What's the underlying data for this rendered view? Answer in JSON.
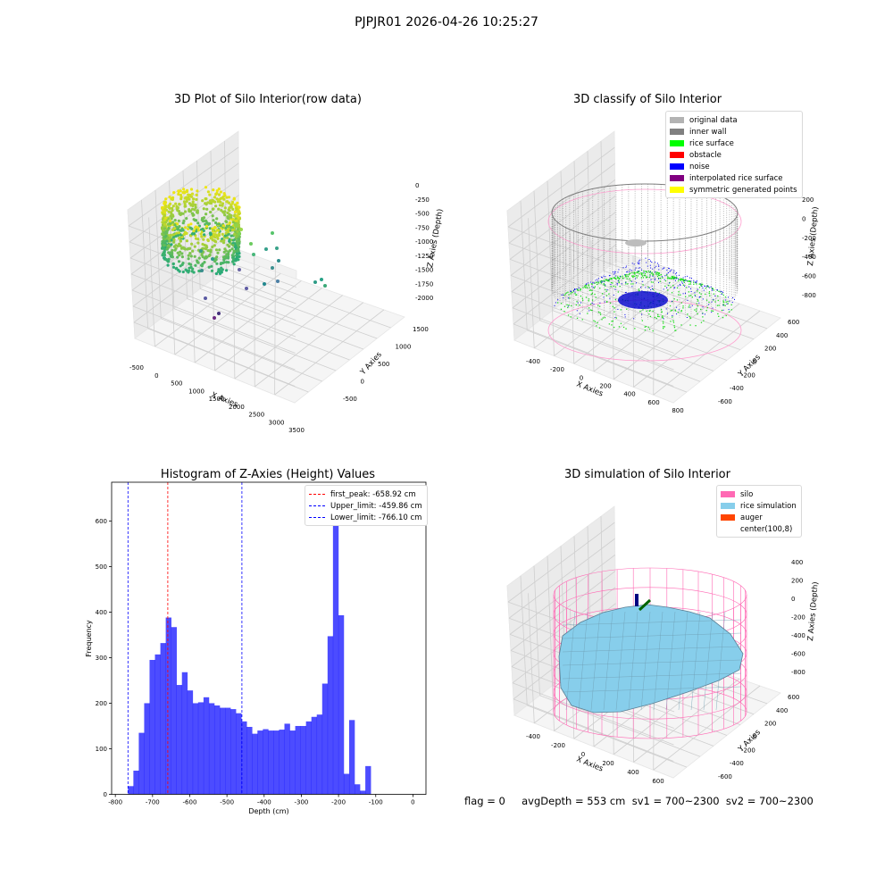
{
  "suptitle": "PJPJR01 2026-04-26 10:25:27",
  "panels": {
    "raw": {
      "title": "3D Plot of Silo Interior(row data)",
      "xlabel": "X Axies",
      "ylabel": "Y Axies",
      "zlabel": "Z Axies (Depth)",
      "xticks": [
        "-500",
        "0",
        "500",
        "1000",
        "1500",
        "2000",
        "2500",
        "3000",
        "3500"
      ],
      "yticks": [
        "-500",
        "0",
        "500",
        "1000",
        "1500"
      ],
      "zticks": [
        "0",
        "-250",
        "-500",
        "-750",
        "-1000",
        "-1250",
        "-1500",
        "-1750",
        "-2000"
      ]
    },
    "classify": {
      "title": "3D classify of Silo Interior",
      "xlabel": "X Axies",
      "ylabel": "Y Axies",
      "zlabel": "Z Axies (Depth)",
      "xticks": [
        "-400",
        "-200",
        "0",
        "200",
        "400",
        "600",
        "800"
      ],
      "yticks": [
        "-600",
        "-400",
        "-200",
        "0",
        "200",
        "400",
        "600"
      ],
      "zticks": [
        "200",
        "0",
        "-200",
        "-400",
        "-600",
        "-800"
      ],
      "legend": [
        {
          "label": "original data",
          "color": "#b3b3b3"
        },
        {
          "label": "inner wall",
          "color": "#808080"
        },
        {
          "label": "rice surface",
          "color": "#00ff00"
        },
        {
          "label": "obstacle",
          "color": "#ff0000"
        },
        {
          "label": "noise",
          "color": "#0000ff"
        },
        {
          "label": "interpolated rice surface",
          "color": "#800080"
        },
        {
          "label": "symmetric generated points",
          "color": "#ffff00"
        }
      ]
    },
    "simulation": {
      "title": "3D simulation of Silo Interior",
      "xlabel": "X Axies",
      "ylabel": "Y Axies",
      "zlabel": "Z Axies (Depth)",
      "xticks": [
        "-400",
        "-200",
        "0",
        "200",
        "400",
        "600"
      ],
      "yticks": [
        "-600",
        "-400",
        "-200",
        "0",
        "200",
        "400",
        "600"
      ],
      "zticks": [
        "400",
        "200",
        "0",
        "-200",
        "-400",
        "-600",
        "-800"
      ],
      "legend": [
        {
          "label": "silo",
          "color": "#ff69b4"
        },
        {
          "label": "rice simulation",
          "color": "#87ceeb"
        },
        {
          "label": "auger",
          "color": "#ff4500"
        },
        {
          "label": "center(100,8)",
          "color": ""
        }
      ]
    }
  },
  "chart_data": [
    {
      "type": "histogram",
      "title": "Histogram of Z-Axies (Height) Values",
      "xlabel": "Depth (cm)",
      "ylabel": "Frequency",
      "xlim": [
        -810,
        35
      ],
      "ylim": [
        0,
        685
      ],
      "xticks": [
        -800,
        -700,
        -600,
        -500,
        -400,
        -300,
        -200,
        -100,
        0
      ],
      "yticks": [
        0,
        100,
        200,
        300,
        400,
        500,
        600
      ],
      "bar_color": "#0000ff",
      "bins_start": -766,
      "bin_width": 14.5,
      "counts": [
        18,
        52,
        135,
        200,
        295,
        307,
        332,
        388,
        367,
        240,
        268,
        228,
        200,
        202,
        213,
        200,
        195,
        190,
        190,
        187,
        178,
        160,
        148,
        133,
        140,
        143,
        140,
        140,
        142,
        155,
        140,
        150,
        150,
        160,
        170,
        175,
        243,
        347,
        655,
        393,
        45,
        163,
        22,
        8,
        62
      ],
      "vlines": [
        {
          "label": "first_peak: -658.92 cm",
          "x": -658.92,
          "color": "#ff0000"
        },
        {
          "label": "Upper_limit: -459.86 cm",
          "x": -459.86,
          "color": "#0000ff"
        },
        {
          "label": "Lower_limit: -766.10 cm",
          "x": -766.1,
          "color": "#0000ff"
        }
      ]
    }
  ],
  "footer": "flag = 0     avgDepth = 553 cm  sv1 = 700~2300  sv2 = 700~2300"
}
